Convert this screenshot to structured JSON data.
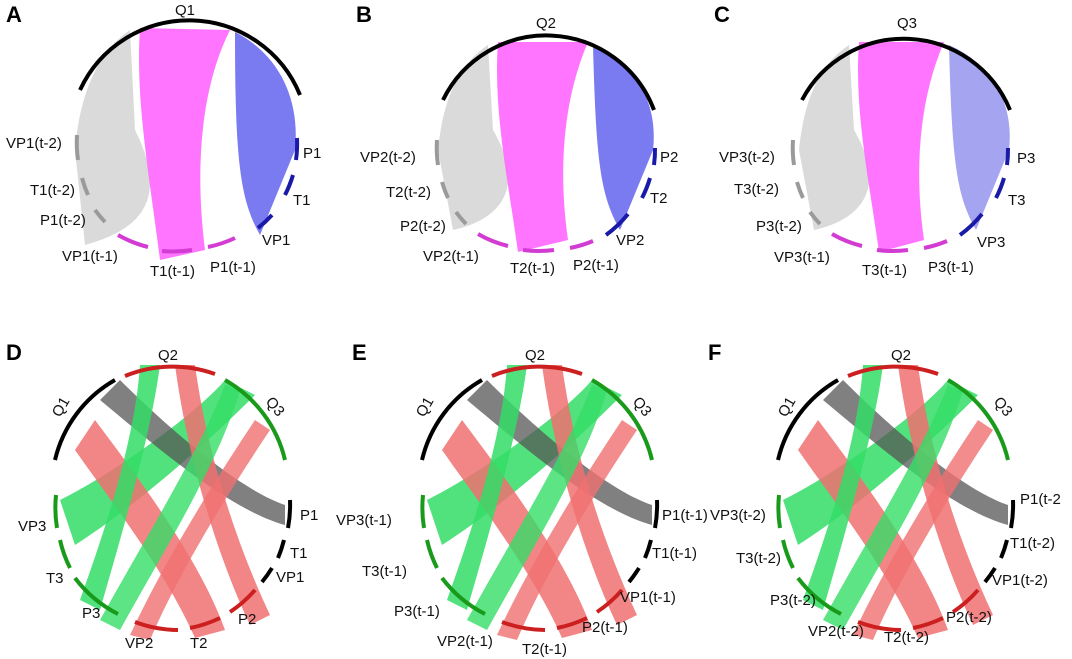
{
  "figure": {
    "panels": [
      {
        "letter": "A",
        "sectors": [
          {
            "label": "Q1",
            "color": "#000000"
          },
          {
            "label": "P1",
            "color": "#1a1aa8"
          },
          {
            "label": "T1",
            "color": "#1a1aa8"
          },
          {
            "label": "VP1",
            "color": "#1a1aa8"
          },
          {
            "label": "P1(t-1)",
            "color": "#d23cd2"
          },
          {
            "label": "T1(t-1)",
            "color": "#d23cd2"
          },
          {
            "label": "VP1(t-1)",
            "color": "#d23cd2"
          },
          {
            "label": "P1(t-2)",
            "color": "#9a9a9a"
          },
          {
            "label": "T1(t-2)",
            "color": "#9a9a9a"
          },
          {
            "label": "VP1(t-2)",
            "color": "#9a9a9a"
          }
        ]
      },
      {
        "letter": "B",
        "sectors": [
          {
            "label": "Q2",
            "color": "#000000"
          },
          {
            "label": "P2",
            "color": "#1a1aa8"
          },
          {
            "label": "T2",
            "color": "#1a1aa8"
          },
          {
            "label": "VP2",
            "color": "#1a1aa8"
          },
          {
            "label": "P2(t-1)",
            "color": "#d23cd2"
          },
          {
            "label": "T2(t-1)",
            "color": "#d23cd2"
          },
          {
            "label": "VP2(t-1)",
            "color": "#d23cd2"
          },
          {
            "label": "P2(t-2)",
            "color": "#9a9a9a"
          },
          {
            "label": "T2(t-2)",
            "color": "#9a9a9a"
          },
          {
            "label": "VP2(t-2)",
            "color": "#9a9a9a"
          }
        ]
      },
      {
        "letter": "C",
        "sectors": [
          {
            "label": "Q3",
            "color": "#000000"
          },
          {
            "label": "P3",
            "color": "#1a1aa8"
          },
          {
            "label": "T3",
            "color": "#1a1aa8"
          },
          {
            "label": "VP3",
            "color": "#1a1aa8"
          },
          {
            "label": "P3(t-1)",
            "color": "#d23cd2"
          },
          {
            "label": "T3(t-1)",
            "color": "#d23cd2"
          },
          {
            "label": "VP3(t-1)",
            "color": "#d23cd2"
          },
          {
            "label": "P3(t-2)",
            "color": "#9a9a9a"
          },
          {
            "label": "T3(t-2)",
            "color": "#9a9a9a"
          },
          {
            "label": "VP3(t-2)",
            "color": "#9a9a9a"
          }
        ]
      },
      {
        "letter": "D",
        "sectors": [
          {
            "label": "Q2",
            "color": "#cc1f1f"
          },
          {
            "label": "Q3",
            "color": "#1a9a1a"
          },
          {
            "label": "P1",
            "color": "#000000"
          },
          {
            "label": "T1",
            "color": "#000000"
          },
          {
            "label": "VP1",
            "color": "#000000"
          },
          {
            "label": "P2",
            "color": "#cc1f1f"
          },
          {
            "label": "T2",
            "color": "#cc1f1f"
          },
          {
            "label": "VP2",
            "color": "#cc1f1f"
          },
          {
            "label": "P3",
            "color": "#1a9a1a"
          },
          {
            "label": "T3",
            "color": "#1a9a1a"
          },
          {
            "label": "VP3",
            "color": "#1a9a1a"
          },
          {
            "label": "Q1",
            "color": "#000000"
          }
        ]
      },
      {
        "letter": "E",
        "sectors": [
          {
            "label": "Q2",
            "color": "#cc1f1f"
          },
          {
            "label": "Q3",
            "color": "#1a9a1a"
          },
          {
            "label": "P1(t-1)",
            "color": "#000000"
          },
          {
            "label": "T1(t-1)",
            "color": "#000000"
          },
          {
            "label": "VP1(t-1)",
            "color": "#000000"
          },
          {
            "label": "P2(t-1)",
            "color": "#cc1f1f"
          },
          {
            "label": "T2(t-1)",
            "color": "#cc1f1f"
          },
          {
            "label": "VP2(t-1)",
            "color": "#cc1f1f"
          },
          {
            "label": "P3(t-1)",
            "color": "#1a9a1a"
          },
          {
            "label": "T3(t-1)",
            "color": "#1a9a1a"
          },
          {
            "label": "VP3(t-1)",
            "color": "#1a9a1a"
          },
          {
            "label": "Q1",
            "color": "#000000"
          }
        ]
      },
      {
        "letter": "F",
        "sectors": [
          {
            "label": "Q2",
            "color": "#cc1f1f"
          },
          {
            "label": "Q3",
            "color": "#1a9a1a"
          },
          {
            "label": "P1(t-2",
            "color": "#000000"
          },
          {
            "label": "T1(t-2)",
            "color": "#000000"
          },
          {
            "label": "VP1(t-2)",
            "color": "#000000"
          },
          {
            "label": "P2(t-2)",
            "color": "#cc1f1f"
          },
          {
            "label": "T2(t-2)",
            "color": "#cc1f1f"
          },
          {
            "label": "VP2(t-2)",
            "color": "#cc1f1f"
          },
          {
            "label": "P3(t-2)",
            "color": "#1a9a1a"
          },
          {
            "label": "T3(t-2)",
            "color": "#1a9a1a"
          },
          {
            "label": "VP3(t-2)",
            "color": "#1a9a1a"
          },
          {
            "label": "Q1",
            "color": "#000000"
          }
        ]
      }
    ],
    "ribbon_colors": {
      "gray": "#d6d6d6",
      "magenta": "#ff66ff",
      "blue": "#6b6bf0",
      "green": "#33dd66",
      "red": "#f07070",
      "dark": "#555555"
    }
  }
}
